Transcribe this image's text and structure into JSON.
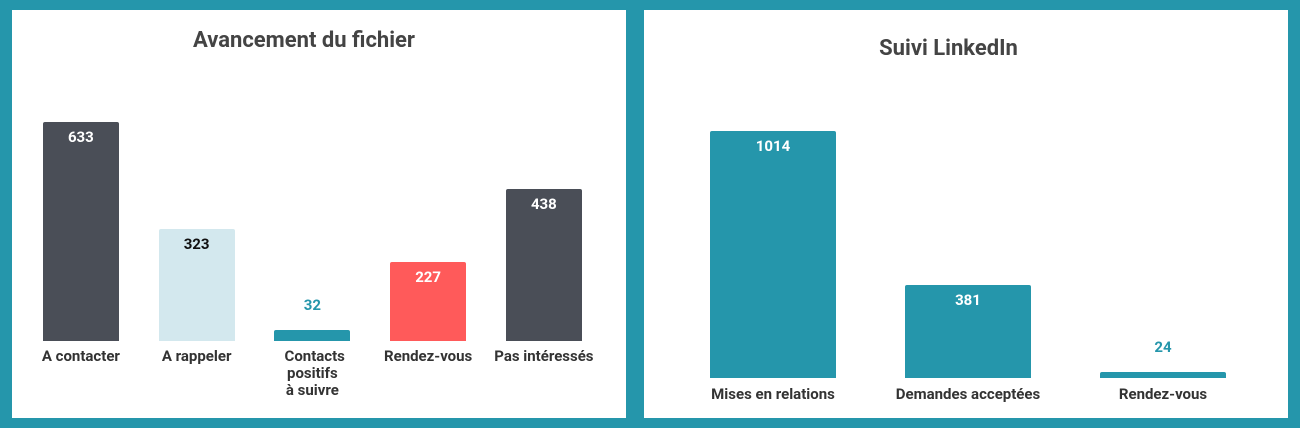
{
  "chart_data": [
    {
      "type": "bar",
      "title": "Avancement du fichier",
      "categories": [
        "A contacter",
        "A rappeler",
        "Contacts positifs à suivre",
        "Rendez-vous",
        "Pas intéressés"
      ],
      "values": [
        633,
        323,
        32,
        227,
        438
      ],
      "colors": [
        "#4a4e57",
        "#d3e8ee",
        "#2596ab",
        "#ff5a5a",
        "#4a4e57"
      ]
    },
    {
      "type": "bar",
      "title": "Suivi LinkedIn",
      "categories": [
        "Mises en relations",
        "Demandes acceptées",
        "Rendez-vous"
      ],
      "values": [
        1014,
        381,
        24
      ],
      "colors": [
        "#2596ab",
        "#2596ab",
        "#2596ab"
      ]
    }
  ]
}
